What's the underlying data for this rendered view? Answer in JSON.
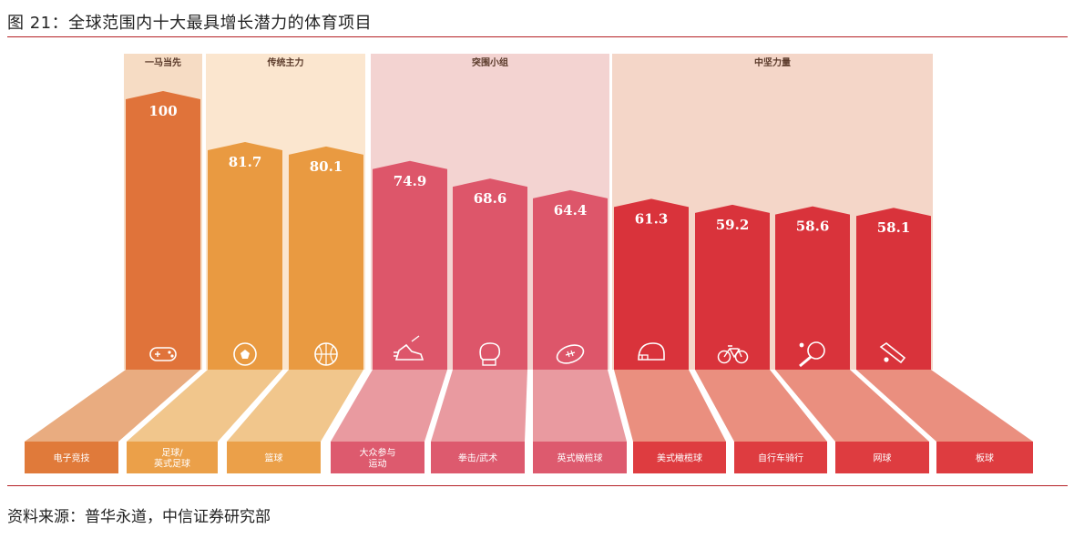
{
  "title": "图 21：全球范围内十大最具增长潜力的体育项目",
  "source": "资料来源：普华永道，中信证券研究部",
  "chart_data": {
    "type": "bar",
    "ylim": [
      0,
      100
    ],
    "groups": [
      {
        "label": "一马当先",
        "bg": "#f6dcc4",
        "from": 0,
        "to": 0
      },
      {
        "label": "传统主力",
        "bg": "#fbe6cf",
        "from": 1,
        "to": 2
      },
      {
        "label": "突围小组",
        "bg": "#f3d3d1",
        "from": 3,
        "to": 5
      },
      {
        "label": "中坚力量",
        "bg": "#f4d6c8",
        "from": 6,
        "to": 9
      }
    ],
    "bars": [
      {
        "value": 100,
        "label": "100",
        "category": "电子竞技",
        "icon": "gamepad-icon",
        "color": "#e0733a",
        "plate": "#e9ac80",
        "badge": "#e07a3a"
      },
      {
        "value": 81.7,
        "label": "81.7",
        "category": "足球/英式足球",
        "icon": "soccer-ball-icon",
        "color": "#e99a41",
        "plate": "#f1c68c",
        "badge": "#eba049"
      },
      {
        "value": 80.1,
        "label": "80.1",
        "category": "篮球",
        "icon": "basketball-icon",
        "color": "#e99a41",
        "plate": "#f1c68c",
        "badge": "#eba049"
      },
      {
        "value": 74.9,
        "label": "74.9",
        "category": "大众参与运动",
        "icon": "running-shoe-icon",
        "color": "#dd566a",
        "plate": "#e99aa0",
        "badge": "#dd5a6e"
      },
      {
        "value": 68.6,
        "label": "68.6",
        "category": "拳击/武术",
        "icon": "boxing-glove-icon",
        "color": "#dd566a",
        "plate": "#e99aa0",
        "badge": "#dd5a6e"
      },
      {
        "value": 64.4,
        "label": "64.4",
        "category": "英式橄榄球",
        "icon": "rugby-ball-icon",
        "color": "#dd566a",
        "plate": "#e99aa0",
        "badge": "#dd5a6e"
      },
      {
        "value": 61.3,
        "label": "61.3",
        "category": "美式橄榄球",
        "icon": "football-helmet-icon",
        "color": "#d9333b",
        "plate": "#ea8f7f",
        "badge": "#de3c40"
      },
      {
        "value": 59.2,
        "label": "59.2",
        "category": "自行车骑行",
        "icon": "bicycle-icon",
        "color": "#d9333b",
        "plate": "#ea8f7f",
        "badge": "#de3c40"
      },
      {
        "value": 58.6,
        "label": "58.6",
        "category": "",
        "icon": "table-tennis-icon",
        "color": "#d9333b",
        "plate": "#ea8f7f",
        "badge": "#de3c40"
      },
      {
        "value": 58.1,
        "label": "58.1",
        "category": "",
        "icon": "cricket-bat-icon",
        "color": "#d9333b",
        "plate": "#ea8f7f",
        "badge": "#de3c40"
      }
    ],
    "bottom_labels": [
      "电子竞技",
      "足球/\n英式足球",
      "篮球",
      "大众参与\n运动",
      "拳击/武术",
      "英式橄榄球",
      "美式橄榄球",
      "自行车骑行",
      "网球",
      "板球"
    ]
  }
}
